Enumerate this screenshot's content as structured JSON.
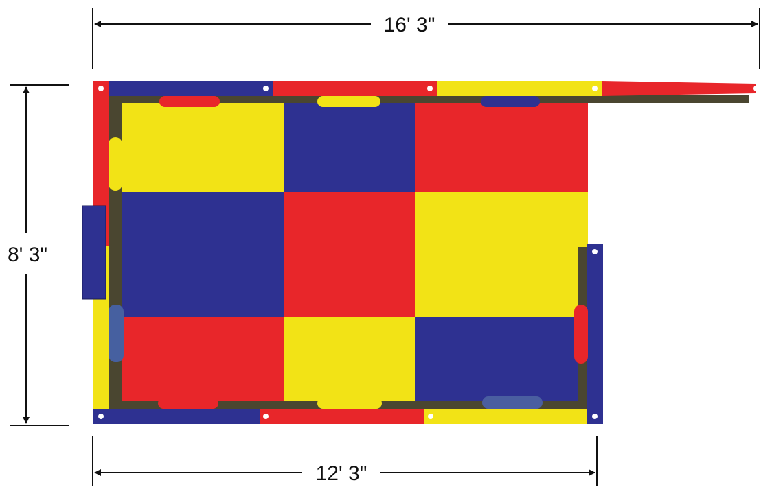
{
  "dimensions": {
    "overall_width": "16' 3\"",
    "depth": "8' 3\"",
    "inner_width": "12' 3\""
  },
  "colors": {
    "red": "#e8262a",
    "yellow": "#f2e316",
    "blue": "#2e3191",
    "line": "#111111",
    "rail_shadow": "#4a4630"
  },
  "floor_grid": {
    "rows": 3,
    "cols": 3,
    "cells": [
      [
        "yellow",
        "blue",
        "red"
      ],
      [
        "blue",
        "red",
        "yellow"
      ],
      [
        "red",
        "yellow",
        "blue"
      ]
    ]
  }
}
